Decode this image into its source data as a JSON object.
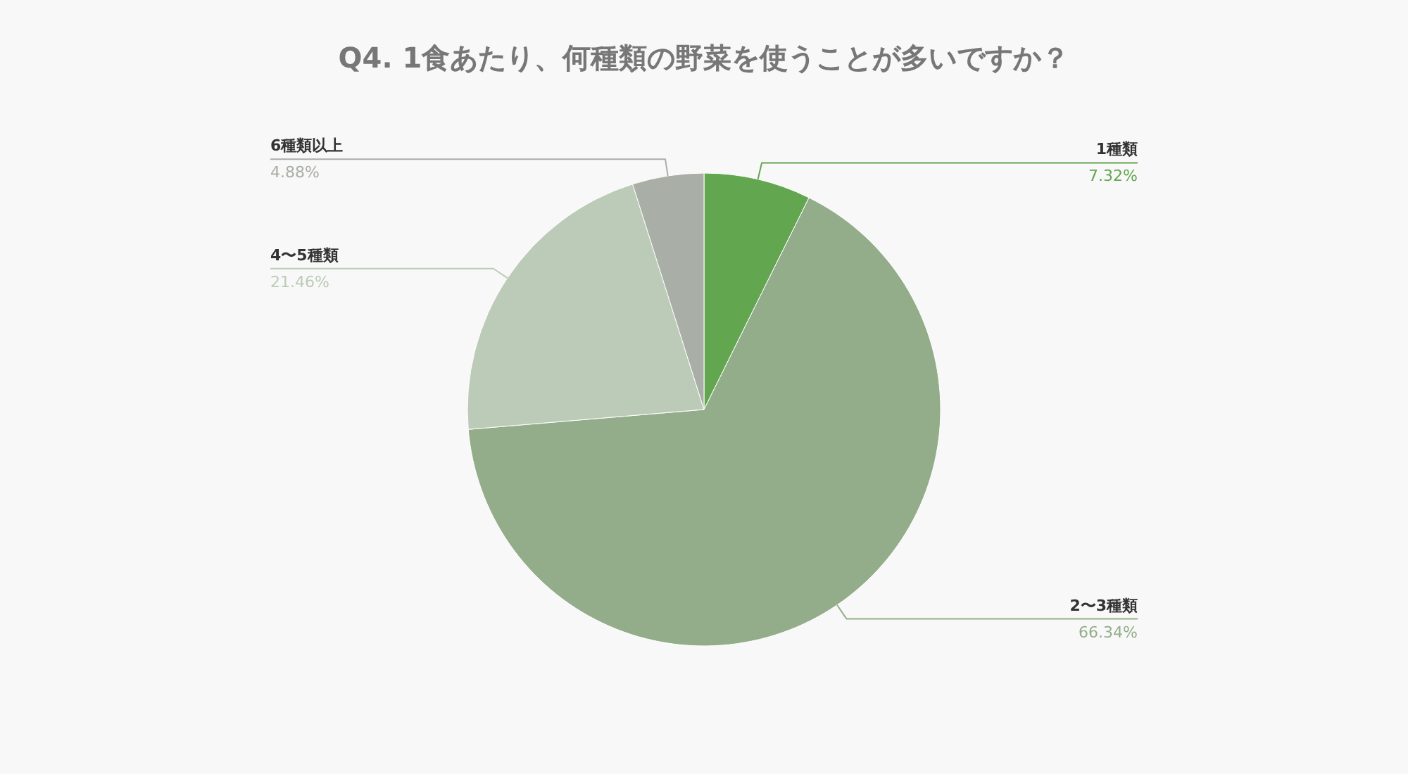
{
  "chart_data": {
    "type": "pie",
    "title": "Q4. 1食あたり、何種類の野菜を使うことが多いですか？",
    "categories": [
      "1種類",
      "2〜3種類",
      "4〜5種類",
      "6種類以上"
    ],
    "values": [
      7.32,
      66.34,
      21.46,
      4.88
    ],
    "value_labels": [
      "7.32%",
      "66.34%",
      "21.46%",
      "4.88%"
    ],
    "colors": [
      "#62a64f",
      "#93ad8a",
      "#bccbb7",
      "#a9aea6"
    ],
    "legend": false
  }
}
